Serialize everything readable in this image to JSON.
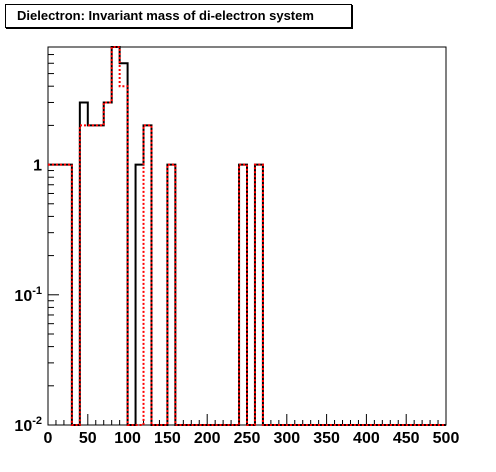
{
  "chart_data": {
    "type": "histogram",
    "title": "Dielectron: Invariant mass of di-electron system",
    "xlim": [
      0,
      500
    ],
    "ylim": [
      0.01,
      8
    ],
    "yscale": "log",
    "grid": false,
    "x_ticks": [
      "0",
      "50",
      "100",
      "150",
      "200",
      "250",
      "300",
      "350",
      "400",
      "450",
      "500"
    ],
    "y_ticks": [
      {
        "value": 0.01,
        "base": "10",
        "exp": "-2"
      },
      {
        "value": 0.1,
        "base": "10",
        "exp": "-1"
      },
      {
        "value": 1,
        "base": "1",
        "exp": ""
      }
    ],
    "bin_width": 10,
    "series": [
      {
        "style": "solid",
        "color": "#000000",
        "bins_x_low": [
          0,
          10,
          20,
          30,
          40,
          50,
          60,
          70,
          80,
          90,
          100,
          110,
          120,
          130,
          140,
          150,
          160,
          170,
          180,
          190,
          200,
          210,
          220,
          230,
          240,
          250,
          260,
          270,
          280,
          290,
          300,
          310,
          320,
          330,
          340,
          350,
          360,
          370,
          380,
          390,
          400,
          410,
          420,
          430,
          440,
          450,
          460,
          470,
          480,
          490
        ],
        "values": [
          1,
          1,
          1,
          0.01,
          3,
          2,
          2,
          3,
          8,
          6,
          0.01,
          1,
          2,
          0.01,
          0.01,
          1,
          0.01,
          0.01,
          0.01,
          0.01,
          0.01,
          0.01,
          0.01,
          0.01,
          1,
          0.01,
          1,
          0.01,
          0.01,
          0.01,
          0.01,
          0.01,
          0.01,
          0.01,
          0.01,
          0.01,
          0.01,
          0.01,
          0.01,
          0.01,
          0.01,
          0.01,
          0.01,
          0.01,
          0.01,
          0.01,
          0.01,
          0.01,
          0.01,
          0.01
        ]
      },
      {
        "style": "dotted",
        "color": "#ff0000",
        "bins_x_low": [
          0,
          10,
          20,
          30,
          40,
          50,
          60,
          70,
          80,
          90,
          100,
          110,
          120,
          130,
          140,
          150,
          160,
          170,
          180,
          190,
          200,
          210,
          220,
          230,
          240,
          250,
          260,
          270,
          280,
          290,
          300,
          310,
          320,
          330,
          340,
          350,
          360,
          370,
          380,
          390,
          400,
          410,
          420,
          430,
          440,
          450,
          460,
          470,
          480,
          490
        ],
        "values": [
          1,
          1,
          1,
          0.01,
          2,
          2,
          2,
          3,
          8,
          4,
          0.01,
          0.01,
          2,
          0.01,
          0.01,
          1,
          0.01,
          0.01,
          0.01,
          0.01,
          0.01,
          0.01,
          0.01,
          0.01,
          1,
          0.01,
          1,
          0.01,
          0.01,
          0.01,
          0.01,
          0.01,
          0.01,
          0.01,
          0.01,
          0.01,
          0.01,
          0.01,
          0.01,
          0.01,
          0.01,
          0.01,
          0.01,
          0.01,
          0.01,
          0.01,
          0.01,
          0.01,
          0.01,
          0.01
        ]
      }
    ]
  }
}
